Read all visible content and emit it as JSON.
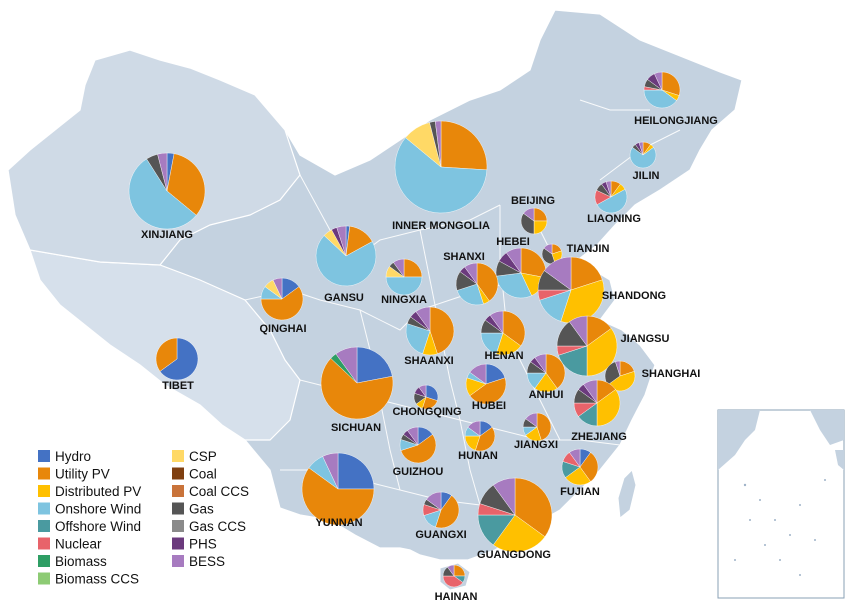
{
  "legend": [
    {
      "key": "hydro",
      "label": "Hydro",
      "color": "#4472C4"
    },
    {
      "key": "utility_pv",
      "label": "Utility PV",
      "color": "#E8870A"
    },
    {
      "key": "distributed_pv",
      "label": "Distributed PV",
      "color": "#FFC000"
    },
    {
      "key": "onshore_wind",
      "label": "Onshore Wind",
      "color": "#7EC4E0"
    },
    {
      "key": "offshore_wind",
      "label": "Offshore Wind",
      "color": "#4A9AA0"
    },
    {
      "key": "nuclear",
      "label": "Nuclear",
      "color": "#E8636A"
    },
    {
      "key": "biomass",
      "label": "Biomass",
      "color": "#2E9E64"
    },
    {
      "key": "biomass_ccs",
      "label": "Biomass CCS",
      "color": "#8DCB74"
    },
    {
      "key": "csp",
      "label": "CSP",
      "color": "#FFD966"
    },
    {
      "key": "coal",
      "label": "Coal",
      "color": "#7F3F10"
    },
    {
      "key": "coal_ccs",
      "label": "Coal CCS",
      "color": "#C9733A"
    },
    {
      "key": "gas",
      "label": "Gas",
      "color": "#555555"
    },
    {
      "key": "gas_ccs",
      "label": "Gas CCS",
      "color": "#8A8A8A"
    },
    {
      "key": "phs",
      "label": "PHS",
      "color": "#6B3A7D"
    },
    {
      "key": "bess",
      "label": "BESS",
      "color": "#A77BC0"
    }
  ],
  "provinces": [
    {
      "name": "HEILONGJIANG",
      "size": 18,
      "mix": {
        "onshore_wind": 40,
        "utility_pv": 30,
        "distributed_pv": 5,
        "nuclear": 3,
        "gas": 7,
        "phs": 8,
        "bess": 7
      }
    },
    {
      "name": "JILIN",
      "size": 13,
      "mix": {
        "onshore_wind": 70,
        "utility_pv": 10,
        "distributed_pv": 5,
        "gas": 5,
        "phs": 5,
        "bess": 5
      }
    },
    {
      "name": "LIAONING",
      "size": 16,
      "mix": {
        "onshore_wind": 50,
        "nuclear": 15,
        "utility_pv": 10,
        "distributed_pv": 7,
        "gas": 8,
        "phs": 5,
        "bess": 5
      }
    },
    {
      "name": "BEIJING",
      "size": 13,
      "mix": {
        "distributed_pv": 25,
        "utility_pv": 25,
        "gas": 35,
        "bess": 15
      }
    },
    {
      "name": "TIANJIN",
      "size": 10,
      "mix": {
        "distributed_pv": 25,
        "utility_pv": 20,
        "gas": 40,
        "bess": 15
      }
    },
    {
      "name": "HEBEI",
      "size": 25,
      "mix": {
        "onshore_wind": 30,
        "utility_pv": 28,
        "distributed_pv": 15,
        "gas": 10,
        "phs": 7,
        "bess": 10
      }
    },
    {
      "name": "SHANXI",
      "size": 21,
      "mix": {
        "utility_pv": 40,
        "onshore_wind": 25,
        "distributed_pv": 5,
        "gas": 15,
        "phs": 5,
        "bess": 10
      }
    },
    {
      "name": "INNER MONGOLIA",
      "size": 46,
      "mix": {
        "onshore_wind": 60,
        "utility_pv": 26,
        "csp": 10,
        "gas": 2,
        "bess": 2
      }
    },
    {
      "name": "XINJIANG",
      "size": 38,
      "mix": {
        "onshore_wind": 55,
        "utility_pv": 33,
        "hydro": 3,
        "gas": 5,
        "bess": 4
      }
    },
    {
      "name": "GANSU",
      "size": 30,
      "mix": {
        "onshore_wind": 70,
        "utility_pv": 15,
        "csp": 5,
        "hydro": 2,
        "phs": 3,
        "bess": 5
      }
    },
    {
      "name": "NINGXIA",
      "size": 18,
      "mix": {
        "onshore_wind": 50,
        "utility_pv": 25,
        "csp": 10,
        "gas": 5,
        "bess": 10
      }
    },
    {
      "name": "QINGHAI",
      "size": 21,
      "mix": {
        "utility_pv": 60,
        "hydro": 15,
        "onshore_wind": 10,
        "csp": 8,
        "bess": 7
      }
    },
    {
      "name": "TIBET",
      "size": 21,
      "mix": {
        "hydro": 65,
        "utility_pv": 35
      }
    },
    {
      "name": "SHAANXI",
      "size": 24,
      "mix": {
        "utility_pv": 45,
        "onshore_wind": 25,
        "distributed_pv": 10,
        "gas": 5,
        "phs": 5,
        "bess": 10
      }
    },
    {
      "name": "SICHUAN",
      "size": 36,
      "mix": {
        "utility_pv": 65,
        "hydro": 22,
        "biomass": 3,
        "bess": 10
      }
    },
    {
      "name": "CHONGQING",
      "size": 12,
      "mix": {
        "hydro": 30,
        "utility_pv": 25,
        "distributed_pv": 10,
        "gas": 15,
        "phs": 10,
        "bess": 10
      }
    },
    {
      "name": "HENAN",
      "size": 22,
      "mix": {
        "utility_pv": 35,
        "distributed_pv": 20,
        "onshore_wind": 20,
        "gas": 10,
        "phs": 5,
        "bess": 10
      }
    },
    {
      "name": "HUBEI",
      "size": 20,
      "mix": {
        "utility_pv": 45,
        "hydro": 20,
        "distributed_pv": 15,
        "onshore_wind": 5,
        "bess": 15
      }
    },
    {
      "name": "SHANDONG",
      "size": 33,
      "mix": {
        "distributed_pv": 35,
        "utility_pv": 20,
        "onshore_wind": 15,
        "gas": 10,
        "nuclear": 5,
        "bess": 15
      }
    },
    {
      "name": "JIANGSU",
      "size": 30,
      "mix": {
        "distributed_pv": 35,
        "utility_pv": 15,
        "offshore_wind": 20,
        "nuclear": 5,
        "gas": 15,
        "bess": 10
      }
    },
    {
      "name": "SHANGHAI",
      "size": 15,
      "mix": {
        "distributed_pv": 45,
        "utility_pv": 20,
        "gas": 30,
        "bess": 5
      }
    },
    {
      "name": "ANHUI",
      "size": 19,
      "mix": {
        "utility_pv": 40,
        "distributed_pv": 20,
        "onshore_wind": 15,
        "gas": 10,
        "phs": 5,
        "bess": 10
      }
    },
    {
      "name": "ZHEJIANG",
      "size": 23,
      "mix": {
        "distributed_pv": 35,
        "utility_pv": 15,
        "offshore_wind": 15,
        "nuclear": 10,
        "gas": 10,
        "phs": 5,
        "bess": 10
      }
    },
    {
      "name": "JIANGXI",
      "size": 14,
      "mix": {
        "utility_pv": 45,
        "distributed_pv": 20,
        "onshore_wind": 10,
        "gas": 10,
        "bess": 15
      }
    },
    {
      "name": "HUNAN",
      "size": 15,
      "mix": {
        "utility_pv": 40,
        "distributed_pv": 20,
        "hydro": 15,
        "onshore_wind": 10,
        "bess": 15
      }
    },
    {
      "name": "GUIZHOU",
      "size": 18,
      "mix": {
        "utility_pv": 55,
        "hydro": 15,
        "onshore_wind": 10,
        "gas": 5,
        "phs": 5,
        "bess": 10
      }
    },
    {
      "name": "FUJIAN",
      "size": 18,
      "mix": {
        "utility_pv": 30,
        "distributed_pv": 25,
        "offshore_wind": 15,
        "nuclear": 10,
        "hydro": 10,
        "bess": 10
      }
    },
    {
      "name": "YUNNAN",
      "size": 36,
      "mix": {
        "utility_pv": 60,
        "hydro": 25,
        "onshore_wind": 8,
        "bess": 7
      }
    },
    {
      "name": "GUANGXI",
      "size": 18,
      "mix": {
        "utility_pv": 45,
        "onshore_wind": 15,
        "nuclear": 10,
        "hydro": 10,
        "gas": 5,
        "bess": 15
      }
    },
    {
      "name": "GUANGDONG",
      "size": 37,
      "mix": {
        "utility_pv": 35,
        "distributed_pv": 25,
        "offshore_wind": 15,
        "nuclear": 5,
        "gas": 10,
        "bess": 10
      }
    },
    {
      "name": "HAINAN",
      "size": 11,
      "mix": {
        "nuclear": 40,
        "utility_pv": 25,
        "gas": 15,
        "offshore_wind": 10,
        "bess": 10
      }
    }
  ]
}
